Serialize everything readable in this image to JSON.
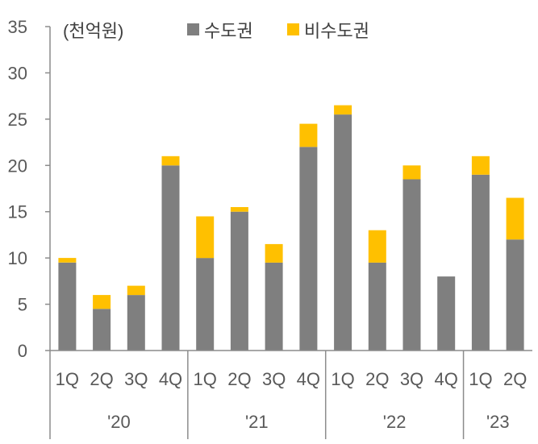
{
  "chart_data": {
    "type": "bar",
    "stacked": true,
    "unit_label": "(천억원)",
    "categories": [
      "1Q",
      "2Q",
      "3Q",
      "4Q",
      "1Q",
      "2Q",
      "3Q",
      "4Q",
      "1Q",
      "2Q",
      "3Q",
      "4Q",
      "1Q",
      "2Q"
    ],
    "groups": [
      {
        "label": "'20",
        "count": 4
      },
      {
        "label": "'21",
        "count": 4
      },
      {
        "label": "'22",
        "count": 4
      },
      {
        "label": "'23",
        "count": 2
      }
    ],
    "series": [
      {
        "name": "수도권",
        "color": "#7f7f7f",
        "values": [
          9.5,
          4.5,
          6,
          20,
          10,
          15,
          9.5,
          22,
          25.5,
          9.5,
          18.5,
          8,
          19,
          12
        ]
      },
      {
        "name": "비수도권",
        "color": "#ffc000",
        "values": [
          0.5,
          1.5,
          1,
          1,
          4.5,
          0.5,
          2,
          2.5,
          1,
          3.5,
          1.5,
          0,
          2,
          4.5
        ]
      }
    ],
    "ylim": [
      0,
      35
    ],
    "yticks": [
      0,
      5,
      10,
      15,
      20,
      25,
      30,
      35
    ],
    "grid": false,
    "legend_position": "top"
  }
}
